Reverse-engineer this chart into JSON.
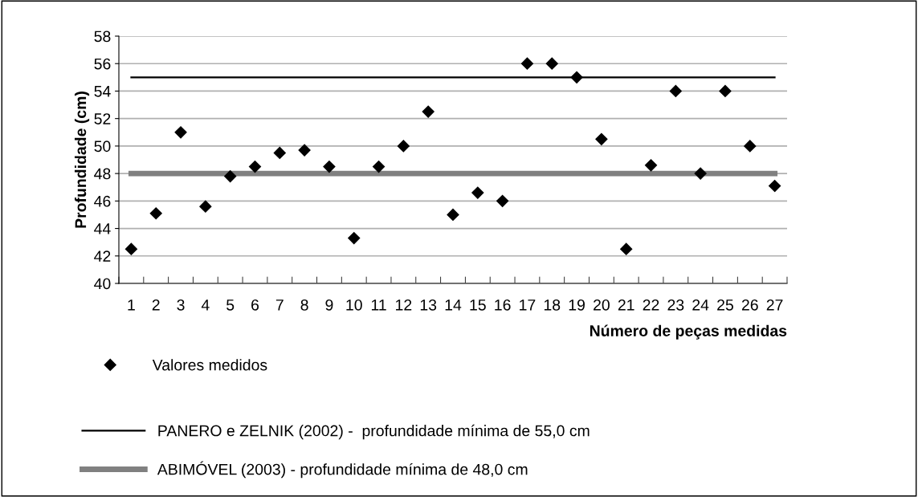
{
  "chart_data": {
    "type": "scatter",
    "xlabel": "Número de peças medidas",
    "ylabel": "Profundidade (cm)",
    "categories": [
      "1",
      "2",
      "3",
      "4",
      "5",
      "6",
      "7",
      "8",
      "9",
      "10",
      "11",
      "12",
      "13",
      "14",
      "15",
      "16",
      "17",
      "18",
      "19",
      "20",
      "21",
      "22",
      "23",
      "24",
      "25",
      "26",
      "27"
    ],
    "series": [
      {
        "name": "Valores medidos",
        "color": "#000000",
        "marker": "diamond",
        "values": [
          42.5,
          45.1,
          51,
          45.6,
          47.8,
          48.5,
          49.5,
          49.7,
          48.5,
          43.3,
          48.5,
          50,
          52.5,
          45,
          46.6,
          46,
          56,
          56,
          55,
          50.5,
          42.5,
          48.6,
          54,
          48,
          54,
          50,
          47.1
        ]
      }
    ],
    "ref_lines": [
      {
        "axis": "y",
        "value": 55,
        "label": "PANERO e ZELNIK (2002) -  profundidade mínima de 55,0 cm",
        "color": "#000000"
      },
      {
        "axis": "y",
        "value": 48,
        "label": "ABIMÓVEL (2003) - profundidade mínima de 48,0 cm",
        "color": "#808080"
      }
    ],
    "ylim": [
      40,
      58
    ],
    "yticks": [
      40,
      42,
      44,
      46,
      48,
      50,
      52,
      54,
      56,
      58
    ],
    "grid": "y",
    "legend": "bottom"
  }
}
